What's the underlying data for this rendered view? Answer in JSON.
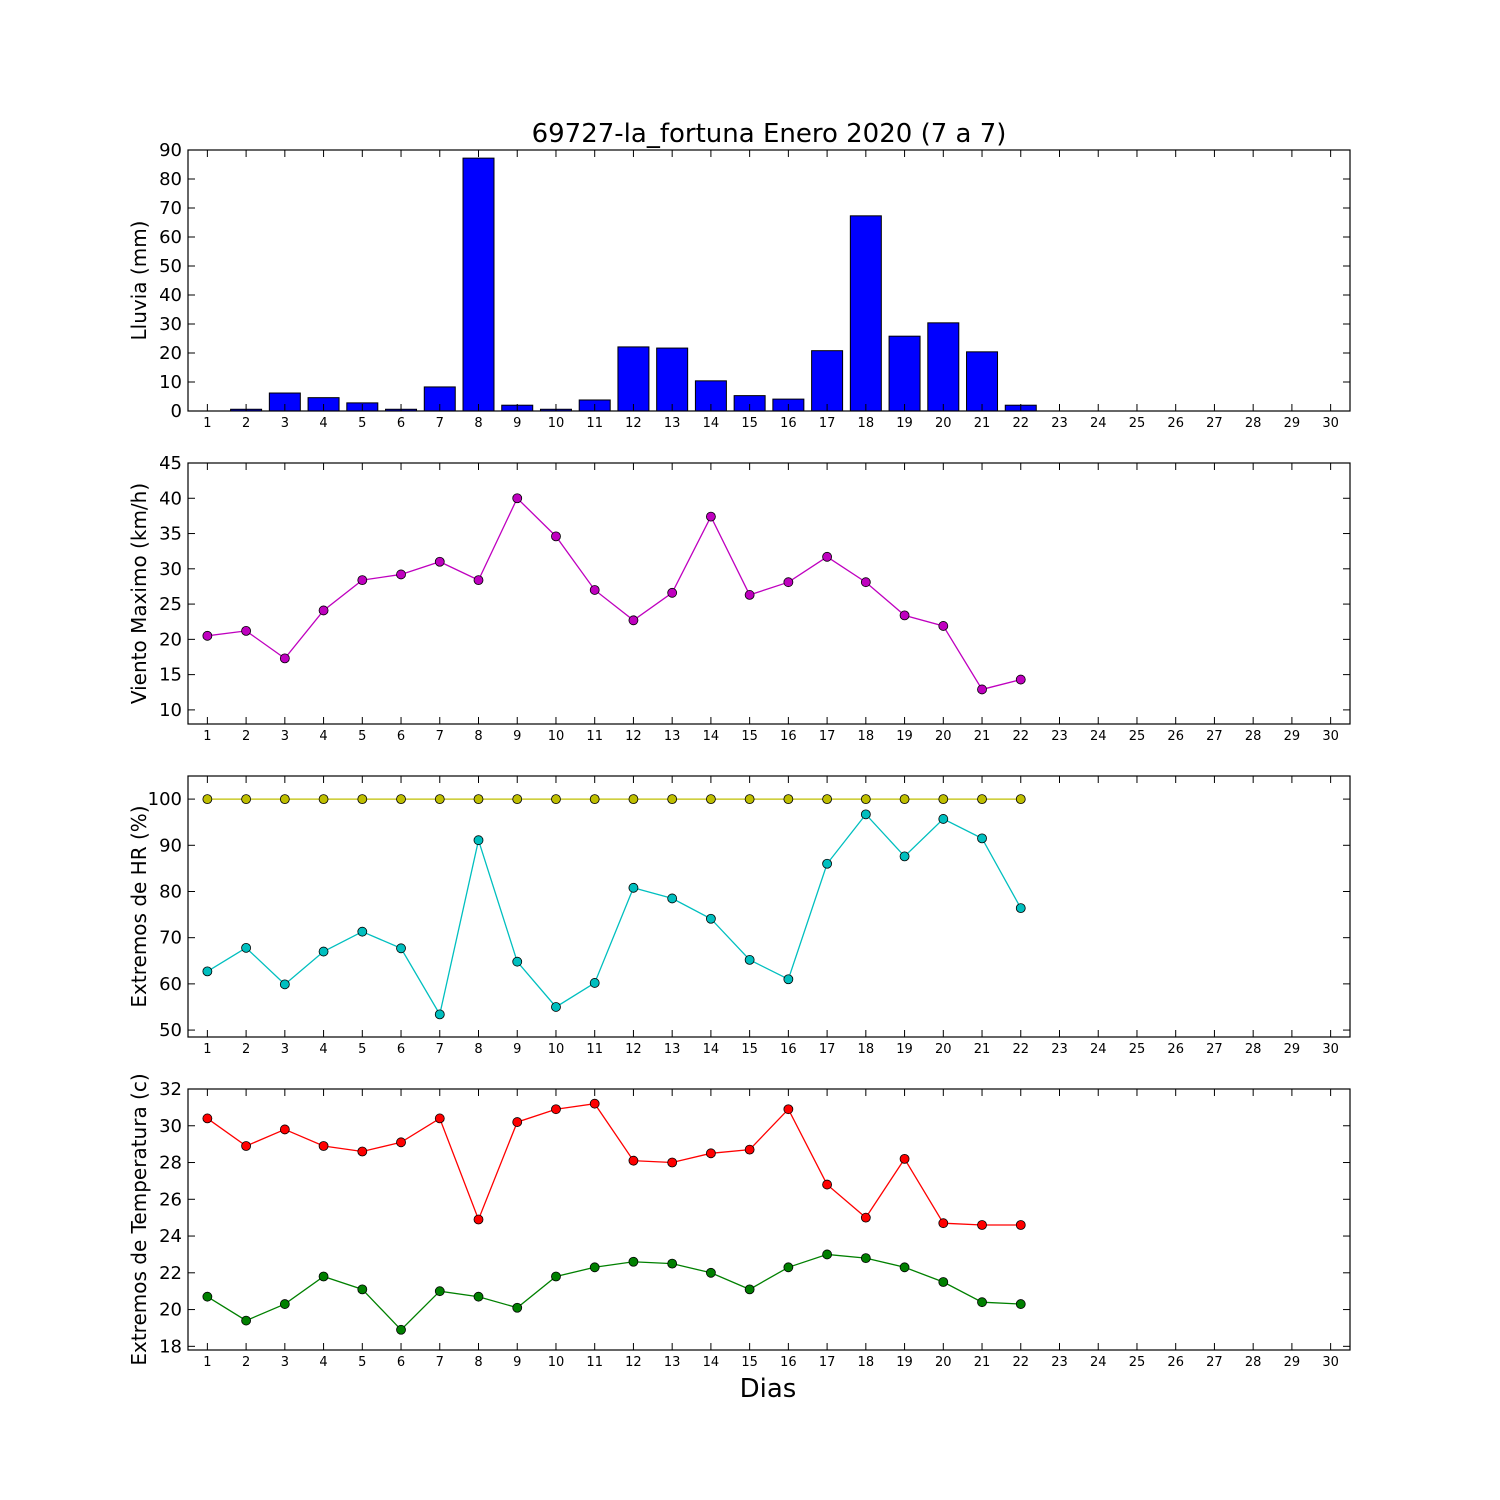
{
  "chart_data": {
    "title": "69727-la_fortuna Enero 2020  (7 a 7)",
    "xlabel": "Dias",
    "x_ticks": [
      1,
      2,
      3,
      4,
      5,
      6,
      7,
      8,
      9,
      10,
      11,
      12,
      13,
      14,
      15,
      16,
      17,
      18,
      19,
      20,
      21,
      22,
      23,
      24,
      25,
      26,
      27,
      28,
      29,
      30
    ],
    "xlim": [
      0.5,
      30.5
    ],
    "panels": [
      {
        "id": "lluvia",
        "type": "bar",
        "ylabel": "Lluvia (mm)",
        "ylim": [
          0,
          90
        ],
        "yticks": [
          0,
          10,
          20,
          30,
          40,
          50,
          60,
          70,
          80,
          90
        ],
        "series": [
          {
            "color": "#0000ff",
            "x": [
              1,
              2,
              3,
              4,
              5,
              6,
              7,
              8,
              9,
              10,
              11,
              12,
              13,
              14,
              15,
              16,
              17,
              18,
              19,
              20,
              21,
              22
            ],
            "values": [
              0.0,
              0.6,
              6.2,
              4.6,
              2.8,
              0.6,
              8.3,
              87.2,
              2.0,
              0.6,
              3.8,
              22.1,
              21.7,
              10.4,
              5.3,
              4.1,
              20.8,
              67.3,
              25.8,
              30.4,
              20.4,
              2.0
            ]
          }
        ]
      },
      {
        "id": "viento",
        "type": "line",
        "ylabel": "Viento Maximo (km/h)",
        "ylim": [
          8,
          45
        ],
        "yticks": [
          10,
          15,
          20,
          25,
          30,
          35,
          40,
          45
        ],
        "series": [
          {
            "color": "#bf00bf",
            "x": [
              1,
              2,
              3,
              4,
              5,
              6,
              7,
              8,
              9,
              10,
              11,
              12,
              13,
              14,
              15,
              16,
              17,
              18,
              19,
              20,
              21,
              22
            ],
            "values": [
              20.5,
              21.2,
              17.3,
              24.1,
              28.4,
              29.2,
              31.0,
              28.4,
              40.0,
              34.6,
              27.0,
              22.7,
              26.6,
              37.4,
              26.3,
              28.1,
              31.7,
              28.1,
              23.4,
              21.9,
              12.9,
              14.3
            ]
          }
        ]
      },
      {
        "id": "hr",
        "type": "line",
        "ylabel": "Extremos de HR (%)",
        "ylim": [
          48.5,
          105
        ],
        "yticks": [
          50,
          60,
          70,
          80,
          90,
          100
        ],
        "series": [
          {
            "color": "#bfbf00",
            "x": [
              1,
              2,
              3,
              4,
              5,
              6,
              7,
              8,
              9,
              10,
              11,
              12,
              13,
              14,
              15,
              16,
              17,
              18,
              19,
              20,
              21,
              22
            ],
            "values": [
              100,
              100,
              100,
              100,
              100,
              100,
              100,
              100,
              100,
              100,
              100,
              100,
              100,
              100,
              100,
              100,
              100,
              100,
              100,
              100,
              100,
              100
            ]
          },
          {
            "color": "#00bfbf",
            "x": [
              1,
              2,
              3,
              4,
              5,
              6,
              7,
              8,
              9,
              10,
              11,
              12,
              13,
              14,
              15,
              16,
              17,
              18,
              19,
              20,
              21,
              22
            ],
            "values": [
              62.7,
              67.8,
              59.9,
              67.0,
              71.3,
              67.7,
              53.4,
              91.1,
              64.8,
              55.0,
              60.2,
              80.8,
              78.5,
              74.1,
              65.2,
              61.0,
              86.0,
              96.7,
              87.6,
              95.7,
              91.5,
              76.4
            ]
          }
        ]
      },
      {
        "id": "temp",
        "type": "line",
        "ylabel": "Extremos de Temperatura (c)",
        "ylim": [
          17.8,
          32
        ],
        "yticks": [
          18,
          20,
          22,
          24,
          26,
          28,
          30,
          32
        ],
        "series": [
          {
            "color": "#ff0000",
            "x": [
              1,
              2,
              3,
              4,
              5,
              6,
              7,
              8,
              9,
              10,
              11,
              12,
              13,
              14,
              15,
              16,
              17,
              18,
              19,
              20,
              21,
              22
            ],
            "values": [
              30.4,
              28.9,
              29.8,
              28.9,
              28.6,
              29.1,
              30.4,
              24.9,
              30.2,
              30.9,
              31.2,
              28.1,
              28.0,
              28.5,
              28.7,
              30.9,
              26.8,
              25.0,
              28.2,
              24.7,
              24.6,
              24.6
            ]
          },
          {
            "color": "#008000",
            "x": [
              1,
              2,
              3,
              4,
              5,
              6,
              7,
              8,
              9,
              10,
              11,
              12,
              13,
              14,
              15,
              16,
              17,
              18,
              19,
              20,
              21,
              22
            ],
            "values": [
              20.7,
              19.4,
              20.3,
              21.8,
              21.1,
              18.9,
              21.0,
              20.7,
              20.1,
              21.8,
              22.3,
              22.6,
              22.5,
              22.0,
              21.1,
              22.3,
              23.0,
              22.8,
              22.3,
              21.5,
              20.4,
              20.3
            ]
          }
        ]
      }
    ]
  }
}
